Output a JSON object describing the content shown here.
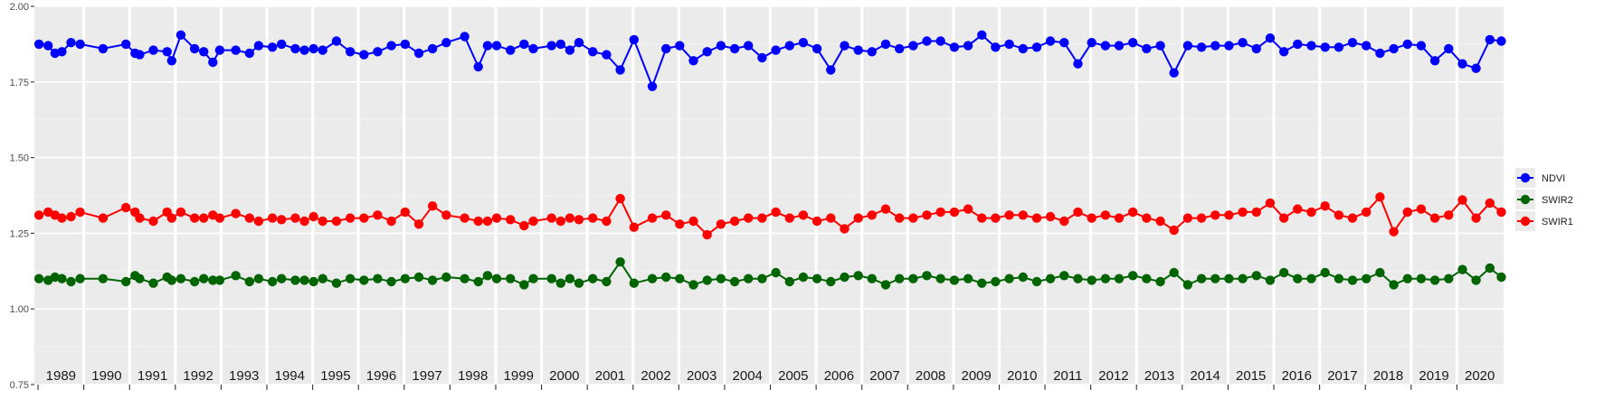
{
  "chart_data": {
    "type": "line",
    "title": "",
    "xlabel": "",
    "ylabel": "",
    "ylim": [
      0.75,
      2.0
    ],
    "y_ticks": [
      "0.75",
      "1.00",
      "1.25",
      "1.50",
      "1.75",
      "2.00"
    ],
    "grid": true,
    "legend_position": "right",
    "facet_labels": [
      "1989",
      "1990",
      "1991",
      "1992",
      "1993",
      "1994",
      "1995",
      "1996",
      "1997",
      "1998",
      "1999",
      "2000",
      "2001",
      "2002",
      "2003",
      "2004",
      "2005",
      "2006",
      "2007",
      "2008",
      "2009",
      "2010",
      "2011",
      "2012",
      "2013",
      "2014",
      "2015",
      "2016",
      "2017",
      "2018",
      "2019",
      "2020"
    ],
    "x": [
      1989.0,
      1989.2,
      1989.35,
      1989.5,
      1989.7,
      1989.9,
      1990.4,
      1990.9,
      1991.1,
      1991.2,
      1991.5,
      1991.8,
      1991.9,
      1992.1,
      1992.4,
      1992.6,
      1992.8,
      1992.95,
      1993.3,
      1993.6,
      1993.8,
      1994.1,
      1994.3,
      1994.6,
      1994.8,
      1995.0,
      1995.2,
      1995.5,
      1995.8,
      1996.1,
      1996.4,
      1996.7,
      1997.0,
      1997.3,
      1997.6,
      1997.9,
      1998.3,
      1998.6,
      1998.8,
      1999.0,
      1999.3,
      1999.6,
      1999.8,
      2000.2,
      2000.4,
      2000.6,
      2000.8,
      2001.1,
      2001.4,
      2001.7,
      2002.0,
      2002.4,
      2002.7,
      2003.0,
      2003.3,
      2003.6,
      2003.9,
      2004.2,
      2004.5,
      2004.8,
      2005.1,
      2005.4,
      2005.7,
      2006.0,
      2006.3,
      2006.6,
      2006.9,
      2007.2,
      2007.5,
      2007.8,
      2008.1,
      2008.4,
      2008.7,
      2009.0,
      2009.3,
      2009.6,
      2009.9,
      2010.2,
      2010.5,
      2010.8,
      2011.1,
      2011.4,
      2011.7,
      2012.0,
      2012.3,
      2012.6,
      2012.9,
      2013.2,
      2013.5,
      2013.8,
      2014.1,
      2014.4,
      2014.7,
      2015.0,
      2015.3,
      2015.6,
      2015.9,
      2016.2,
      2016.5,
      2016.8,
      2017.1,
      2017.4,
      2017.7,
      2018.0,
      2018.3,
      2018.6,
      2018.9,
      2019.2,
      2019.5,
      2019.8,
      2020.1,
      2020.4,
      2020.7,
      2020.95
    ],
    "series": [
      {
        "name": "NDVI",
        "color": "#0000ff",
        "values": [
          1.875,
          1.87,
          1.845,
          1.85,
          1.88,
          1.875,
          1.86,
          1.875,
          1.845,
          1.84,
          1.855,
          1.85,
          1.82,
          1.905,
          1.86,
          1.85,
          1.815,
          1.855,
          1.855,
          1.845,
          1.87,
          1.865,
          1.875,
          1.86,
          1.855,
          1.86,
          1.855,
          1.885,
          1.85,
          1.84,
          1.85,
          1.87,
          1.875,
          1.845,
          1.86,
          1.88,
          1.9,
          1.8,
          1.87,
          1.87,
          1.855,
          1.875,
          1.86,
          1.87,
          1.875,
          1.855,
          1.88,
          1.85,
          1.84,
          1.79,
          1.89,
          1.735,
          1.86,
          1.87,
          1.82,
          1.85,
          1.87,
          1.86,
          1.87,
          1.83,
          1.855,
          1.87,
          1.88,
          1.86,
          1.79,
          1.87,
          1.855,
          1.85,
          1.875,
          1.86,
          1.87,
          1.885,
          1.885,
          1.865,
          1.87,
          1.905,
          1.865,
          1.875,
          1.86,
          1.865,
          1.885,
          1.88,
          1.81,
          1.88,
          1.87,
          1.87,
          1.88,
          1.86,
          1.87,
          1.78,
          1.87,
          1.865,
          1.87,
          1.87,
          1.88,
          1.86,
          1.895,
          1.85,
          1.875,
          1.87,
          1.865,
          1.865,
          1.88,
          1.87,
          1.845,
          1.86,
          1.875,
          1.87,
          1.82,
          1.86,
          1.81,
          1.795,
          1.89,
          1.885
        ]
      },
      {
        "name": "SWIR2",
        "color": "#006400",
        "values": [
          1.1,
          1.095,
          1.105,
          1.1,
          1.09,
          1.1,
          1.1,
          1.09,
          1.11,
          1.1,
          1.085,
          1.105,
          1.095,
          1.1,
          1.09,
          1.1,
          1.095,
          1.095,
          1.11,
          1.09,
          1.1,
          1.09,
          1.1,
          1.095,
          1.095,
          1.09,
          1.1,
          1.085,
          1.1,
          1.095,
          1.1,
          1.09,
          1.1,
          1.105,
          1.095,
          1.105,
          1.1,
          1.09,
          1.11,
          1.1,
          1.1,
          1.08,
          1.1,
          1.1,
          1.085,
          1.1,
          1.085,
          1.1,
          1.09,
          1.155,
          1.085,
          1.1,
          1.105,
          1.1,
          1.08,
          1.095,
          1.1,
          1.09,
          1.1,
          1.1,
          1.12,
          1.09,
          1.105,
          1.1,
          1.09,
          1.105,
          1.11,
          1.1,
          1.08,
          1.1,
          1.1,
          1.11,
          1.1,
          1.095,
          1.1,
          1.085,
          1.09,
          1.1,
          1.105,
          1.09,
          1.1,
          1.11,
          1.1,
          1.095,
          1.1,
          1.1,
          1.11,
          1.1,
          1.09,
          1.12,
          1.08,
          1.1,
          1.1,
          1.1,
          1.1,
          1.11,
          1.095,
          1.12,
          1.1,
          1.1,
          1.12,
          1.1,
          1.095,
          1.1,
          1.12,
          1.08,
          1.1,
          1.1,
          1.095,
          1.1,
          1.13,
          1.095,
          1.135,
          1.105
        ]
      },
      {
        "name": "SWIR1",
        "color": "#ff0000",
        "values": [
          1.31,
          1.32,
          1.31,
          1.3,
          1.305,
          1.32,
          1.3,
          1.335,
          1.32,
          1.3,
          1.29,
          1.32,
          1.3,
          1.32,
          1.3,
          1.3,
          1.31,
          1.3,
          1.315,
          1.3,
          1.29,
          1.3,
          1.295,
          1.3,
          1.29,
          1.305,
          1.29,
          1.29,
          1.3,
          1.3,
          1.31,
          1.29,
          1.32,
          1.28,
          1.34,
          1.31,
          1.3,
          1.29,
          1.29,
          1.3,
          1.295,
          1.275,
          1.29,
          1.3,
          1.29,
          1.3,
          1.295,
          1.3,
          1.29,
          1.365,
          1.27,
          1.3,
          1.31,
          1.28,
          1.29,
          1.245,
          1.28,
          1.29,
          1.3,
          1.3,
          1.32,
          1.3,
          1.31,
          1.29,
          1.3,
          1.265,
          1.3,
          1.31,
          1.33,
          1.3,
          1.3,
          1.31,
          1.32,
          1.32,
          1.33,
          1.3,
          1.3,
          1.31,
          1.31,
          1.3,
          1.305,
          1.29,
          1.32,
          1.3,
          1.31,
          1.3,
          1.32,
          1.3,
          1.29,
          1.26,
          1.3,
          1.3,
          1.31,
          1.31,
          1.32,
          1.32,
          1.35,
          1.3,
          1.33,
          1.32,
          1.34,
          1.31,
          1.3,
          1.32,
          1.37,
          1.255,
          1.32,
          1.33,
          1.3,
          1.31,
          1.36,
          1.3,
          1.35,
          1.32
        ]
      }
    ]
  }
}
